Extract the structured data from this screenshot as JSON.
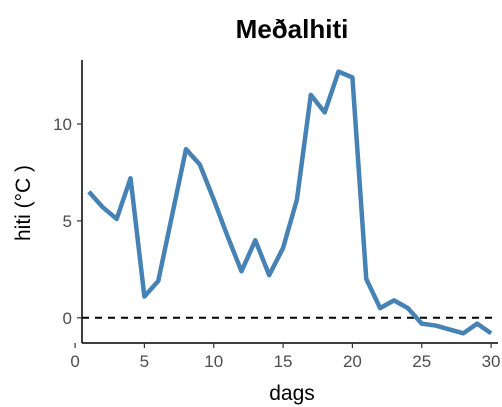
{
  "chart_data": {
    "type": "line",
    "title": "Meðalhiti",
    "xlabel": "dags",
    "ylabel": "hiti (°C )",
    "xlim": [
      0.5,
      30.5
    ],
    "ylim": [
      -1.3,
      13.3
    ],
    "x_ticks": [
      0,
      5,
      10,
      15,
      20,
      25,
      30
    ],
    "y_ticks": [
      0,
      5,
      10
    ],
    "x_tick_labels": [
      "0",
      "5",
      "10",
      "15",
      "20",
      "25",
      "30"
    ],
    "y_tick_labels": [
      "0",
      "5",
      "10"
    ],
    "reference_line": {
      "y": 0,
      "style": "dashed",
      "color": "#000000"
    },
    "grid": false,
    "series": [
      {
        "color": "#4682b4",
        "x": [
          1,
          2,
          3,
          4,
          5,
          6,
          7,
          8,
          9,
          10,
          11,
          12,
          13,
          14,
          15,
          16,
          17,
          18,
          19,
          20,
          21,
          22,
          23,
          24,
          25,
          26,
          27,
          28,
          29,
          30
        ],
        "y": [
          6.5,
          5.7,
          5.1,
          7.2,
          1.1,
          1.9,
          5.3,
          8.7,
          7.9,
          6.1,
          4.2,
          2.4,
          4.0,
          2.2,
          3.6,
          6.1,
          11.5,
          10.6,
          12.7,
          12.4,
          2.0,
          0.5,
          0.9,
          0.5,
          -0.3,
          -0.4,
          -0.6,
          -0.8,
          -0.3,
          -0.8
        ]
      }
    ]
  }
}
